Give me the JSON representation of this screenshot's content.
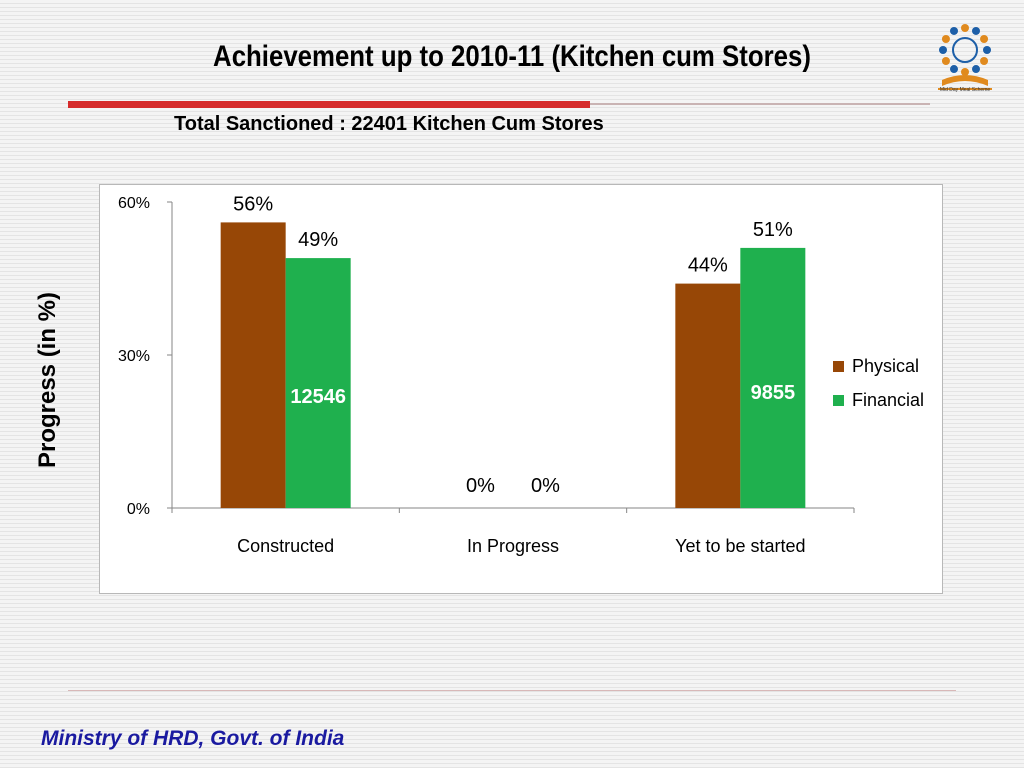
{
  "slide": {
    "title": "Achievement up to 2010-11 (Kitchen cum Stores)",
    "subtitle": "Total Sanctioned :  22401 Kitchen Cum Stores",
    "footer": "Ministry of HRD, Govt. of India",
    "logo_name": "mid-day-meal-scheme-logo",
    "logo_text": "Mid Day Meal Scheme"
  },
  "colors": {
    "physical": "#974706",
    "financial": "#1fb04e",
    "title_rule": "#d62b2b",
    "footer": "#1a1aa0"
  },
  "chart_data": {
    "type": "bar",
    "title": "",
    "xlabel": "",
    "ylabel": "Progress (in %)",
    "ylim": [
      0,
      60
    ],
    "yticks": [
      0,
      30,
      60
    ],
    "ytick_labels": [
      "0%",
      "30%",
      "60%"
    ],
    "grid": false,
    "legend": "right",
    "categories": [
      "Constructed",
      "In Progress",
      "Yet to be started"
    ],
    "series": [
      {
        "name": "Physical",
        "values": [
          56,
          0,
          44
        ],
        "labels": [
          "56%",
          "0%",
          "44%"
        ]
      },
      {
        "name": "Financial",
        "values": [
          49,
          0,
          51
        ],
        "labels": [
          "49%",
          "0%",
          "51%"
        ]
      }
    ],
    "annotations": [
      {
        "category": "Constructed",
        "series": "Financial",
        "text": "12546"
      },
      {
        "category": "Yet to be started",
        "series": "Financial",
        "text": "9855"
      }
    ]
  }
}
